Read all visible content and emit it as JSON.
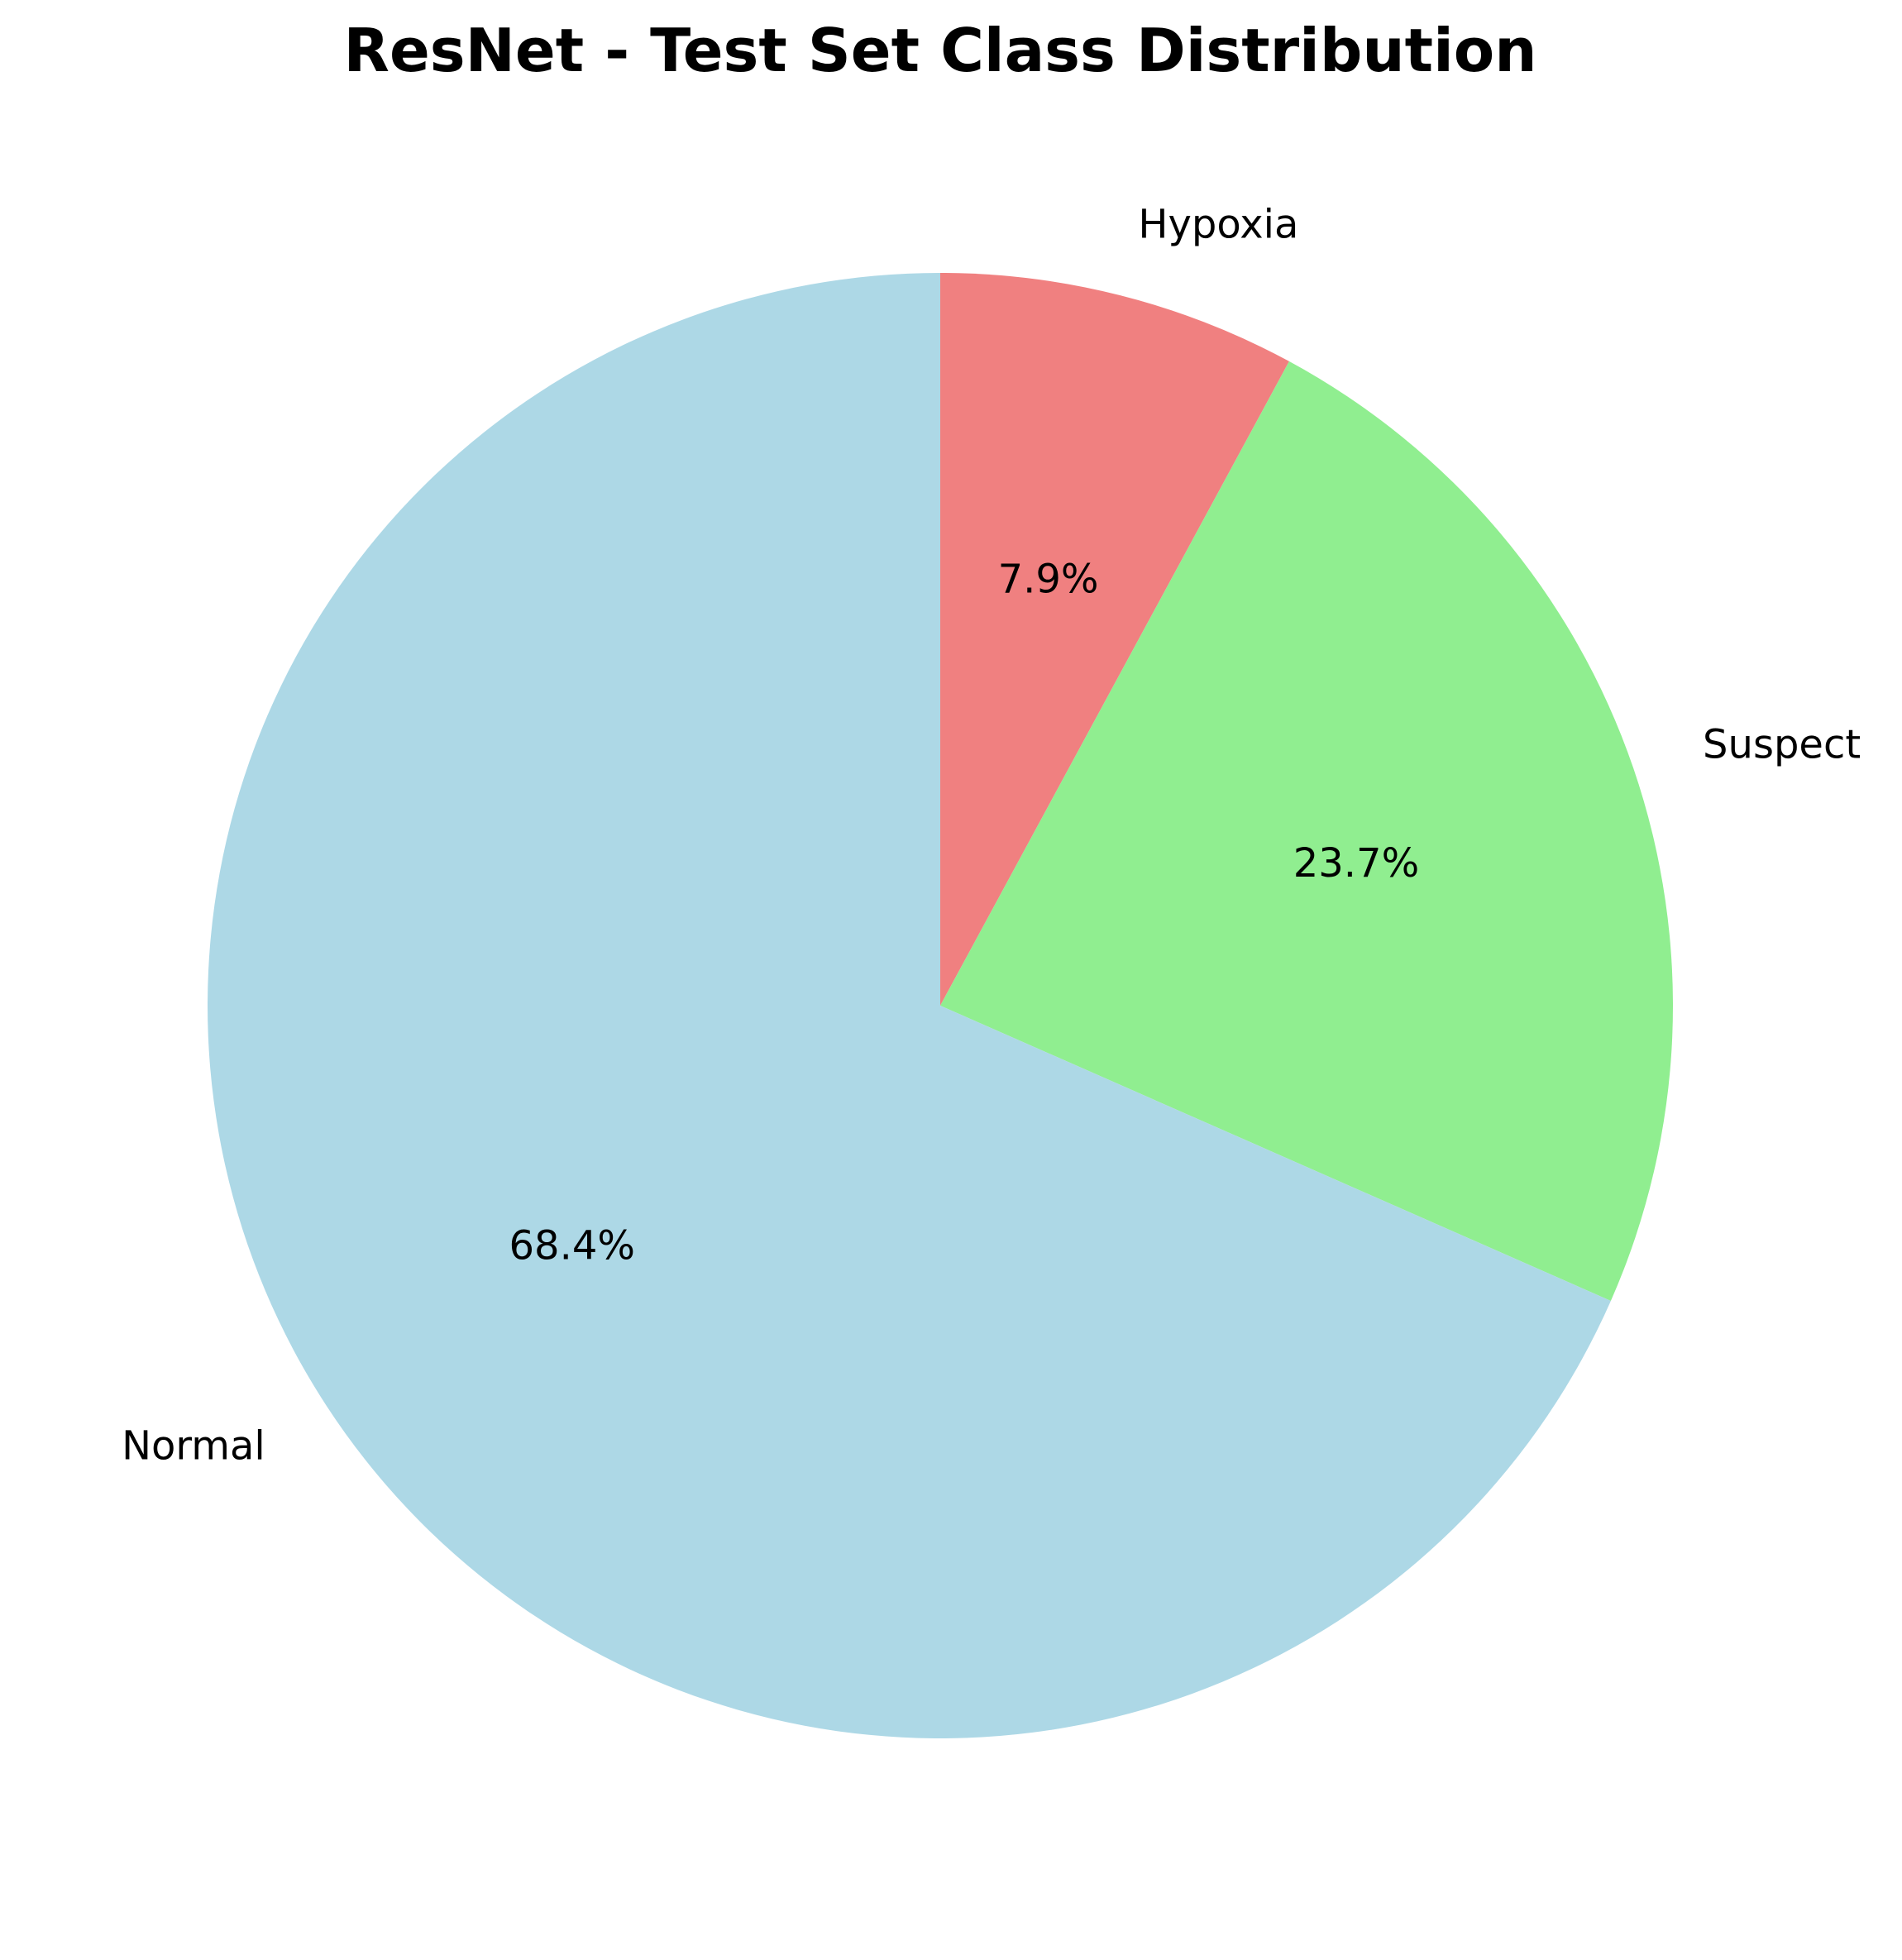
{
  "chart_data": {
    "type": "pie",
    "title": "ResNet - Test Set Class Distribution",
    "start_angle_deg": 90,
    "direction": "clockwise",
    "slices": [
      {
        "label": "Hypoxia",
        "value": 7.9,
        "value_label": "7.9%",
        "color": "#f08080"
      },
      {
        "label": "Suspect",
        "value": 23.7,
        "value_label": "23.7%",
        "color": "#90ee90"
      },
      {
        "label": "Normal",
        "value": 68.4,
        "value_label": "68.4%",
        "color": "#add8e6"
      }
    ]
  }
}
